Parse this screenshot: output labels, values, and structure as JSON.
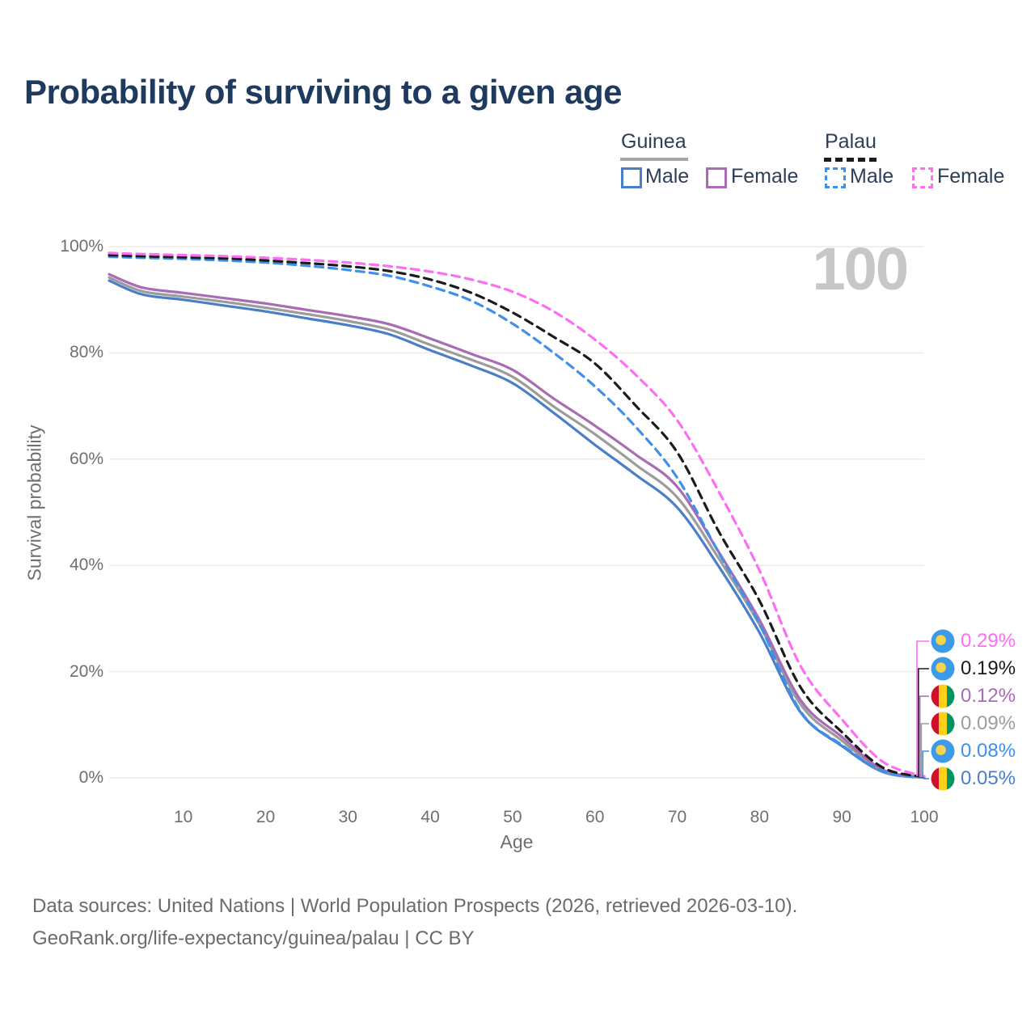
{
  "title": "Probability of surviving to a given age",
  "watermark": "100",
  "legend": {
    "groups": [
      {
        "label": "Guinea",
        "line_color": "#a6a6a6",
        "line_style": "solid",
        "items": [
          {
            "label": "Male",
            "color": "#4a7ec8",
            "style": "solid"
          },
          {
            "label": "Female",
            "color": "#a86cb3",
            "style": "solid"
          }
        ]
      },
      {
        "label": "Palau",
        "line_color": "#1b1b1b",
        "line_style": "dashed",
        "items": [
          {
            "label": "Male",
            "color": "#3f90ea",
            "style": "dashed"
          },
          {
            "label": "Female",
            "color": "#fc6ef2",
            "style": "dashed"
          }
        ]
      }
    ]
  },
  "axes": {
    "y": {
      "label": "Survival probability",
      "ticks": [
        "100%",
        "80%",
        "60%",
        "40%",
        "20%",
        "0%"
      ],
      "tick_values": [
        100,
        80,
        60,
        40,
        20,
        0
      ]
    },
    "x": {
      "label": "Age",
      "ticks": [
        "10",
        "20",
        "30",
        "40",
        "50",
        "60",
        "70",
        "80",
        "90",
        "100"
      ],
      "tick_values": [
        10,
        20,
        30,
        40,
        50,
        60,
        70,
        80,
        90,
        100
      ]
    }
  },
  "end_labels": [
    {
      "value": "0.29%",
      "series": "Palau Female",
      "flag": "palau",
      "color": "#fc6ef2"
    },
    {
      "value": "0.19%",
      "series": "Palau Both sexes",
      "flag": "palau",
      "color": "#1b1b1b"
    },
    {
      "value": "0.12%",
      "series": "Guinea Female",
      "flag": "guinea",
      "color": "#a86cb3"
    },
    {
      "value": "0.09%",
      "series": "Guinea Both sexes",
      "flag": "guinea",
      "color": "#9c9c9c"
    },
    {
      "value": "0.08%",
      "series": "Palau Male",
      "flag": "palau",
      "color": "#3f90ea"
    },
    {
      "value": "0.05%",
      "series": "Guinea Male",
      "flag": "guinea",
      "color": "#4a7ec8"
    }
  ],
  "flags": {
    "palau": {
      "bg": "#3d9ae9",
      "circle": "#f6d44c"
    },
    "guinea": {
      "stripes": [
        "#ce1126",
        "#fcd116",
        "#009460"
      ]
    }
  },
  "footer": {
    "line1": "Data sources: United Nations | World Population Prospects (2026, retrieved 2026-03-10).",
    "line2": "GeoRank.org/life-expectancy/guinea/palau | CC BY"
  },
  "chart_data": {
    "type": "line",
    "title": "Probability of surviving to a given age",
    "xlabel": "Age",
    "ylabel": "Survival probability",
    "xlim": [
      1,
      100
    ],
    "ylim": [
      0,
      100
    ],
    "grid": "horizontal",
    "legend_position": "top-right",
    "x": [
      1,
      5,
      10,
      15,
      20,
      25,
      30,
      35,
      40,
      45,
      50,
      55,
      60,
      65,
      70,
      75,
      80,
      85,
      90,
      95,
      100
    ],
    "series": [
      {
        "name": "Guinea Male",
        "country": "Guinea",
        "sex": "Male",
        "color": "#4a7ec8",
        "dash": false,
        "values": [
          93.6,
          91.0,
          90.0,
          88.9,
          87.8,
          86.5,
          85.2,
          83.5,
          80.5,
          77.6,
          74.3,
          68.7,
          62.7,
          57.0,
          50.9,
          39.9,
          27.3,
          12.3,
          6.0,
          1.1,
          0.05
        ]
      },
      {
        "name": "Guinea Both sexes",
        "country": "Guinea",
        "sex": "Both",
        "color": "#9c9c9c",
        "dash": false,
        "values": [
          94.2,
          91.6,
          90.6,
          89.6,
          88.5,
          87.3,
          86.0,
          84.4,
          81.5,
          78.7,
          75.5,
          69.9,
          64.7,
          58.9,
          52.8,
          41.4,
          28.8,
          13.8,
          7.0,
          1.3,
          0.09
        ]
      },
      {
        "name": "Guinea Female",
        "country": "Guinea",
        "sex": "Female",
        "color": "#a86cb3",
        "dash": false,
        "values": [
          94.8,
          92.3,
          91.3,
          90.3,
          89.3,
          88.1,
          86.9,
          85.4,
          82.7,
          79.8,
          76.8,
          71.4,
          66.3,
          60.8,
          54.8,
          42.6,
          29.7,
          14.6,
          7.7,
          1.5,
          0.12
        ]
      },
      {
        "name": "Palau Male",
        "country": "Palau",
        "sex": "Male",
        "color": "#3f90ea",
        "dash": true,
        "values": [
          98.1,
          97.9,
          97.7,
          97.4,
          97.0,
          96.4,
          95.6,
          94.5,
          92.5,
          89.8,
          85.5,
          80.0,
          73.7,
          66.0,
          56.5,
          42.5,
          28.9,
          12.5,
          6.2,
          1.2,
          0.08
        ]
      },
      {
        "name": "Palau Both sexes",
        "country": "Palau",
        "sex": "Both",
        "color": "#1b1b1b",
        "dash": true,
        "values": [
          98.4,
          98.2,
          98.0,
          97.8,
          97.4,
          96.9,
          96.3,
          95.4,
          93.8,
          91.3,
          87.6,
          83.0,
          78.0,
          70.0,
          61.3,
          46.5,
          33.3,
          17.0,
          8.6,
          1.9,
          0.19
        ]
      },
      {
        "name": "Palau Female",
        "country": "Palau",
        "sex": "Female",
        "color": "#fc6ef2",
        "dash": true,
        "values": [
          98.8,
          98.6,
          98.4,
          98.2,
          97.9,
          97.5,
          97.0,
          96.3,
          95.3,
          93.8,
          91.5,
          87.8,
          82.5,
          75.8,
          67.3,
          54.0,
          39.0,
          21.0,
          11.0,
          3.0,
          0.29
        ]
      }
    ]
  }
}
